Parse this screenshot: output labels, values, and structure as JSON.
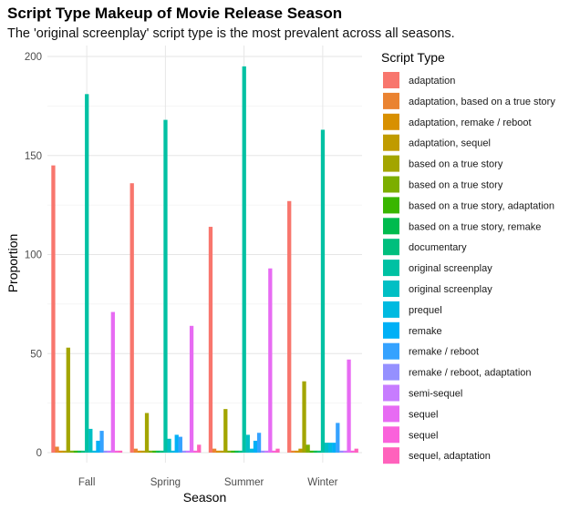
{
  "chart_data": {
    "type": "bar",
    "title": "Script Type Makeup of Movie Release Season",
    "subtitle": "The 'original screenplay' script type is the most prevalent across all seasons.",
    "xlabel": "Season",
    "ylabel": "Proportion",
    "ylim": [
      0,
      200
    ],
    "yticks": [
      0,
      50,
      100,
      150,
      200
    ],
    "categories": [
      "Fall",
      "Spring",
      "Summer",
      "Winter"
    ],
    "legend_title": "Script Type",
    "legend_position": "right",
    "grid": true,
    "series": [
      {
        "name": "adaptation",
        "color": "#F8766D",
        "values": [
          145,
          136,
          114,
          127
        ]
      },
      {
        "name": "adaptation, based on a true story",
        "color": "#EA8331",
        "values": [
          3,
          2,
          2,
          1
        ]
      },
      {
        "name": "adaptation, remake / reboot",
        "color": "#D89000",
        "values": [
          1,
          1,
          1,
          1
        ]
      },
      {
        "name": "adaptation, sequel",
        "color": "#C09B00",
        "values": [
          1,
          1,
          1,
          2
        ]
      },
      {
        "name": "based on a true story",
        "color": "#A3A500",
        "values": [
          53,
          20,
          22,
          36
        ]
      },
      {
        "name": "based on a true story",
        "color": "#7CAE00",
        "values": [
          1,
          1,
          1,
          4
        ]
      },
      {
        "name": "based on a true story, adaptation",
        "color": "#39B600",
        "values": [
          1,
          1,
          1,
          1
        ]
      },
      {
        "name": "based on a true story, remake",
        "color": "#00BB4E",
        "values": [
          1,
          1,
          1,
          1
        ]
      },
      {
        "name": "documentary",
        "color": "#00BF7D",
        "values": [
          1,
          1,
          1,
          1
        ]
      },
      {
        "name": "original screenplay",
        "color": "#00C1A3",
        "values": [
          181,
          168,
          195,
          163
        ]
      },
      {
        "name": "original screenplay",
        "color": "#00BFC4",
        "values": [
          12,
          7,
          9,
          5
        ]
      },
      {
        "name": "prequel",
        "color": "#00BAE0",
        "values": [
          1,
          1,
          2,
          5
        ]
      },
      {
        "name": "remake",
        "color": "#00B0F6",
        "values": [
          6,
          9,
          6,
          5
        ]
      },
      {
        "name": "remake / reboot",
        "color": "#35A2FF",
        "values": [
          11,
          8,
          10,
          15
        ]
      },
      {
        "name": "remake / reboot, adaptation",
        "color": "#9590FF",
        "values": [
          1,
          1,
          1,
          1
        ]
      },
      {
        "name": "semi-sequel",
        "color": "#C77CFF",
        "values": [
          1,
          1,
          1,
          1
        ]
      },
      {
        "name": "sequel",
        "color": "#E76BF3",
        "values": [
          71,
          64,
          93,
          47
        ]
      },
      {
        "name": "sequel",
        "color": "#FA62DB",
        "values": [
          1,
          1,
          1,
          1
        ]
      },
      {
        "name": "sequel, adaptation",
        "color": "#FF62BC",
        "values": [
          1,
          4,
          2,
          2
        ]
      }
    ]
  }
}
